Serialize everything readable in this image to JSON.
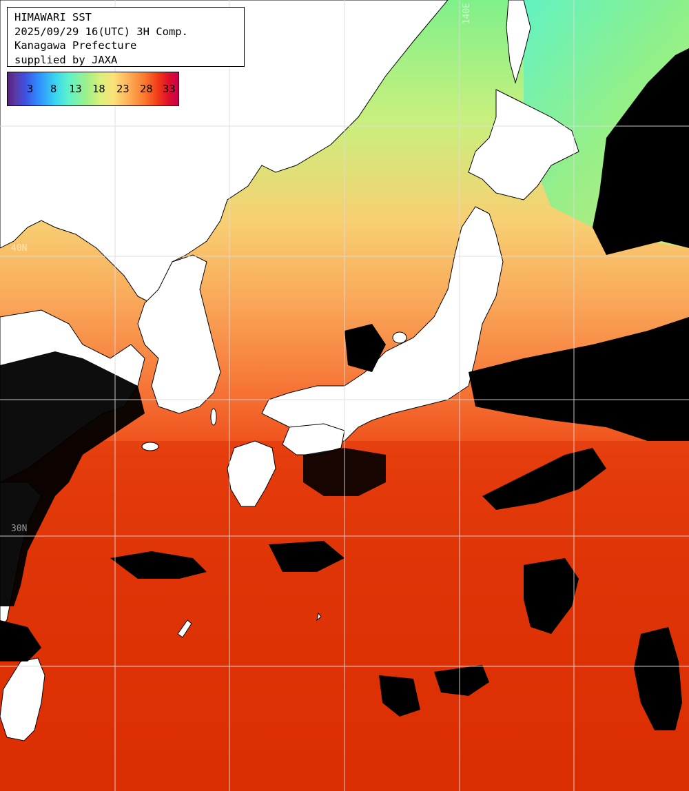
{
  "header": {
    "line1": "HIMAWARI SST",
    "line2": "2025/09/29 16(UTC) 3H Comp.",
    "line3": "Kanagawa Prefecture",
    "line4": "supplied by JAXA"
  },
  "colorbar": {
    "labels": [
      "3",
      "8",
      "13",
      "18",
      "23",
      "28",
      "33"
    ]
  },
  "grid_labels": {
    "lon_140": "140E",
    "lat_upper": "40N",
    "lat_lower": "30N"
  },
  "colors": {
    "land": "#ffffff",
    "cloud": "#000000",
    "grid": "#d8d8d8",
    "warm_sea": "#d92a00",
    "cool_sea": "#9df08a"
  }
}
